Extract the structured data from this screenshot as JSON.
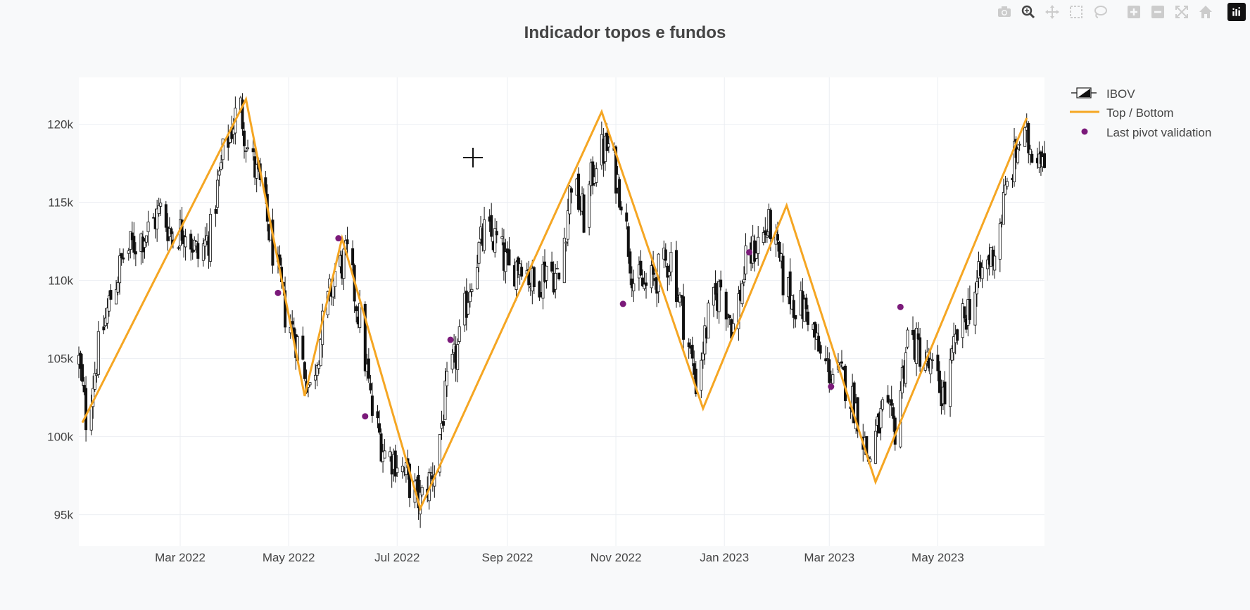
{
  "chart_data": {
    "type": "candlestick",
    "title": "Indicador topos e fundos",
    "ylim": [
      93000,
      123000
    ],
    "xlim": [
      "2022-01-03",
      "2023-06-30"
    ],
    "y_ticks": [
      {
        "value": 95000,
        "label": "95k"
      },
      {
        "value": 100000,
        "label": "100k"
      },
      {
        "value": 105000,
        "label": "105k"
      },
      {
        "value": 110000,
        "label": "110k"
      },
      {
        "value": 115000,
        "label": "115k"
      },
      {
        "value": 120000,
        "label": "120k"
      }
    ],
    "x_ticks": [
      {
        "value": "2022-03-01",
        "label": "Mar 2022"
      },
      {
        "value": "2022-05-01",
        "label": "May 2022"
      },
      {
        "value": "2022-07-01",
        "label": "Jul 2022"
      },
      {
        "value": "2022-09-01",
        "label": "Sep 2022"
      },
      {
        "value": "2022-11-01",
        "label": "Nov 2022"
      },
      {
        "value": "2023-01-01",
        "label": "Jan 2023"
      },
      {
        "value": "2023-03-01",
        "label": "Mar 2023"
      },
      {
        "value": "2023-05-01",
        "label": "May 2023"
      }
    ],
    "series": [
      {
        "name": "IBOV",
        "kind": "candlestick",
        "color": "#111111",
        "close_path": [
          [
            "2022-01-03",
            104800
          ],
          [
            "2022-01-07",
            101200
          ],
          [
            "2022-01-14",
            105500
          ],
          [
            "2022-01-21",
            109000
          ],
          [
            "2022-01-28",
            111500
          ],
          [
            "2022-02-04",
            112500
          ],
          [
            "2022-02-11",
            113200
          ],
          [
            "2022-02-18",
            114500
          ],
          [
            "2022-02-25",
            112800
          ],
          [
            "2022-03-04",
            113500
          ],
          [
            "2022-03-11",
            111500
          ],
          [
            "2022-03-18",
            113000
          ],
          [
            "2022-03-25",
            118000
          ],
          [
            "2022-04-01",
            120500
          ],
          [
            "2022-04-04",
            121000
          ],
          [
            "2022-04-08",
            118500
          ],
          [
            "2022-04-15",
            116000
          ],
          [
            "2022-04-22",
            112000
          ],
          [
            "2022-04-29",
            108000
          ],
          [
            "2022-05-06",
            106000
          ],
          [
            "2022-05-13",
            103000
          ],
          [
            "2022-05-20",
            107000
          ],
          [
            "2022-05-27",
            110500
          ],
          [
            "2022-06-03",
            111500
          ],
          [
            "2022-06-10",
            107500
          ],
          [
            "2022-06-17",
            101500
          ],
          [
            "2022-06-24",
            99000
          ],
          [
            "2022-07-01",
            98500
          ],
          [
            "2022-07-08",
            97000
          ],
          [
            "2022-07-14",
            95800
          ],
          [
            "2022-07-22",
            98000
          ],
          [
            "2022-07-29",
            103000
          ],
          [
            "2022-08-05",
            106000
          ],
          [
            "2022-08-12",
            110500
          ],
          [
            "2022-08-19",
            113000
          ],
          [
            "2022-08-26",
            112500
          ],
          [
            "2022-09-02",
            110500
          ],
          [
            "2022-09-09",
            111500
          ],
          [
            "2022-09-16",
            109500
          ],
          [
            "2022-09-23",
            111000
          ],
          [
            "2022-09-30",
            110000
          ],
          [
            "2022-10-07",
            116500
          ],
          [
            "2022-10-14",
            114000
          ],
          [
            "2022-10-21",
            118000
          ],
          [
            "2022-10-28",
            118500
          ],
          [
            "2022-11-04",
            115500
          ],
          [
            "2022-11-11",
            110000
          ],
          [
            "2022-11-18",
            109500
          ],
          [
            "2022-11-25",
            110500
          ],
          [
            "2022-12-02",
            111500
          ],
          [
            "2022-12-09",
            107500
          ],
          [
            "2022-12-16",
            103500
          ],
          [
            "2022-12-23",
            107500
          ],
          [
            "2022-12-30",
            109700
          ],
          [
            "2023-01-06",
            107000
          ],
          [
            "2023-01-13",
            111000
          ],
          [
            "2023-01-20",
            112500
          ],
          [
            "2023-01-27",
            113500
          ],
          [
            "2023-02-03",
            110000
          ],
          [
            "2023-02-10",
            108500
          ],
          [
            "2023-02-17",
            108000
          ],
          [
            "2023-02-24",
            105000
          ],
          [
            "2023-03-03",
            104000
          ],
          [
            "2023-03-10",
            103500
          ],
          [
            "2023-03-17",
            101500
          ],
          [
            "2023-03-23",
            98500
          ],
          [
            "2023-03-31",
            101500
          ],
          [
            "2023-04-07",
            100500
          ],
          [
            "2023-04-14",
            106500
          ],
          [
            "2023-04-21",
            105500
          ],
          [
            "2023-04-28",
            104000
          ],
          [
            "2023-05-05",
            102500
          ],
          [
            "2023-05-12",
            106500
          ],
          [
            "2023-05-19",
            108500
          ],
          [
            "2023-05-26",
            110500
          ],
          [
            "2023-06-02",
            112000
          ],
          [
            "2023-06-09",
            116000
          ],
          [
            "2023-06-16",
            119000
          ],
          [
            "2023-06-23",
            118500
          ],
          [
            "2023-06-30",
            118400
          ]
        ]
      },
      {
        "name": "Top / Bottom",
        "kind": "line",
        "color": "#f5a623",
        "points": [
          [
            "2022-01-05",
            100900
          ],
          [
            "2022-04-07",
            121600
          ],
          [
            "2022-05-10",
            102600
          ],
          [
            "2022-05-31",
            112700
          ],
          [
            "2022-07-14",
            95400
          ],
          [
            "2022-10-24",
            120800
          ],
          [
            "2022-12-20",
            101800
          ],
          [
            "2023-02-05",
            114800
          ],
          [
            "2023-03-27",
            97100
          ],
          [
            "2023-06-20",
            120400
          ]
        ]
      },
      {
        "name": "Last pivot validation",
        "kind": "markers",
        "color": "#7b1a7a",
        "points": [
          [
            "2022-04-25",
            109200
          ],
          [
            "2022-05-29",
            112700
          ],
          [
            "2022-06-13",
            101300
          ],
          [
            "2022-07-31",
            106200
          ],
          [
            "2022-11-05",
            108500
          ],
          [
            "2023-01-15",
            111800
          ],
          [
            "2023-03-02",
            103200
          ],
          [
            "2023-04-10",
            108300
          ]
        ]
      }
    ],
    "legend_position": "top-right"
  }
}
